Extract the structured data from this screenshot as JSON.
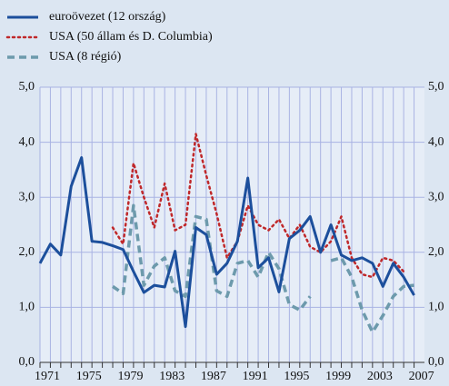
{
  "chart_data": {
    "type": "line",
    "x": [
      1971,
      1972,
      1973,
      1974,
      1975,
      1976,
      1977,
      1978,
      1979,
      1980,
      1981,
      1982,
      1983,
      1984,
      1985,
      1986,
      1987,
      1988,
      1989,
      1990,
      1991,
      1992,
      1993,
      1994,
      1995,
      1996,
      1997,
      1998,
      1999,
      2000,
      2001,
      2002,
      2003,
      2004,
      2005,
      2006,
      2007
    ],
    "series": [
      {
        "name": "euroövezet (12 ország)",
        "color": "#1c4f9c",
        "style": "solid",
        "values": [
          1.8,
          2.15,
          1.95,
          3.2,
          3.72,
          2.2,
          2.18,
          2.12,
          2.05,
          1.65,
          1.27,
          1.4,
          1.37,
          2.02,
          0.65,
          2.45,
          2.32,
          1.6,
          1.8,
          2.2,
          3.35,
          1.72,
          1.9,
          1.28,
          2.25,
          2.4,
          2.65,
          2.0,
          2.5,
          1.95,
          1.85,
          1.9,
          1.8,
          1.38,
          1.8,
          1.55,
          1.22
        ]
      },
      {
        "name": "USA (50 állam és D. Columbia)",
        "color": "#c0282a",
        "style": "dotted",
        "values": [
          null,
          null,
          null,
          null,
          null,
          null,
          null,
          2.45,
          2.15,
          3.62,
          3.0,
          2.45,
          3.25,
          2.4,
          2.5,
          4.15,
          3.4,
          2.7,
          1.9,
          2.2,
          2.85,
          2.5,
          2.4,
          2.6,
          2.25,
          2.5,
          2.1,
          2.0,
          2.2,
          2.65,
          1.9,
          1.6,
          1.55,
          1.9,
          1.85,
          1.65,
          null
        ]
      },
      {
        "name": "USA (8 régió)",
        "color": "#6d9aac",
        "style": "dashed",
        "values": [
          null,
          null,
          null,
          null,
          null,
          null,
          null,
          1.38,
          1.25,
          2.85,
          1.4,
          1.75,
          1.9,
          1.3,
          1.2,
          2.65,
          2.6,
          1.3,
          1.2,
          1.8,
          1.85,
          1.55,
          2.0,
          1.7,
          1.05,
          0.95,
          1.2,
          null,
          1.85,
          1.9,
          1.55,
          0.95,
          0.55,
          0.85,
          1.2,
          1.38,
          1.4
        ]
      }
    ],
    "xlim": [
      1971,
      2008
    ],
    "xticks": [
      1971,
      1975,
      1979,
      1983,
      1987,
      1991,
      1995,
      1999,
      2003,
      2007
    ],
    "ylim": [
      0,
      5
    ],
    "yticks": [
      {
        "value": 0,
        "label": "0,0"
      },
      {
        "value": 1,
        "label": "1,0"
      },
      {
        "value": 2,
        "label": "2,0"
      },
      {
        "value": 3,
        "label": "3,0"
      },
      {
        "value": 4,
        "label": "4,0"
      },
      {
        "value": 5,
        "label": "5,0"
      }
    ],
    "y2lim": [
      0,
      5
    ],
    "y2ticks": [
      {
        "value": 0,
        "label": "0,0"
      },
      {
        "value": 1,
        "label": "1,0"
      },
      {
        "value": 2,
        "label": "2,0"
      },
      {
        "value": 3,
        "label": "3,0"
      },
      {
        "value": 4,
        "label": "4,0"
      },
      {
        "value": 5,
        "label": "5,0"
      }
    ],
    "grid": true,
    "legend": "top-left"
  }
}
